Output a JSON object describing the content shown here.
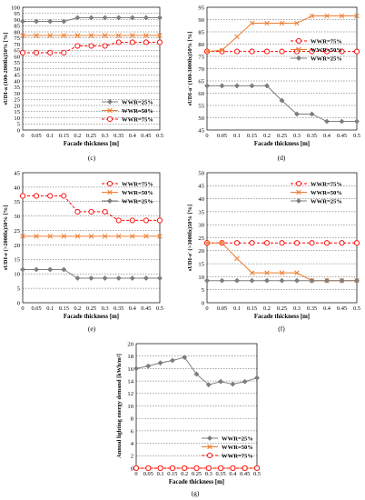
{
  "colors": {
    "wwr25": "#7f7f7f",
    "wwr50": "#ed7d31",
    "wwr75": "#ff0000",
    "axis": "#000000",
    "grid": "#000000"
  },
  "chart_data": [
    {
      "type": "line",
      "panel_label": "(c)",
      "xlabel": "Facade thickness [m]",
      "ylabel": "sUDI-a (100-2000lx)50% [%]",
      "x": [
        "0",
        "0.05",
        "0.1",
        "0.15",
        "0.2",
        "0.25",
        "0.3",
        "0.35",
        "0.4",
        "0.45",
        "0.5"
      ],
      "ylim": [
        0,
        100
      ],
      "yticks": [
        "0",
        "5",
        "10",
        "15",
        "20",
        "25",
        "30",
        "35",
        "40",
        "45",
        "50",
        "55",
        "60",
        "65",
        "70",
        "75",
        "80",
        "85",
        "90",
        "95",
        "100"
      ],
      "legend_position": "bottom-right",
      "series": [
        {
          "name": "WWR=25%",
          "values": [
            88.5,
            88.5,
            88.5,
            88.5,
            91.5,
            91.5,
            91.5,
            91.5,
            91.5,
            91.5,
            91.5
          ]
        },
        {
          "name": "WWR=50%",
          "values": [
            77,
            77,
            77,
            77,
            77,
            77,
            77,
            77,
            77,
            77,
            77
          ]
        },
        {
          "name": "WWR=75%",
          "values": [
            63,
            63,
            63,
            63,
            68.5,
            68.5,
            68.5,
            71.5,
            71.5,
            71.5,
            71.5
          ]
        }
      ]
    },
    {
      "type": "line",
      "panel_label": "(d)",
      "xlabel": "Facade thickness [m]",
      "ylabel": "sUDI-a' (100-3000lx)50% [%]",
      "x": [
        "0",
        "0.05",
        "0.1",
        "0.15",
        "0.2",
        "0.25",
        "0.3",
        "0.35",
        "0.4",
        "0.45",
        "0.5"
      ],
      "ylim": [
        45,
        95
      ],
      "yticks": [
        "45",
        "50",
        "55",
        "60",
        "65",
        "70",
        "75",
        "80",
        "85",
        "90",
        "95"
      ],
      "legend_position": "middle-right",
      "series": [
        {
          "name": "WWR=75%",
          "values": [
            77,
            77,
            77,
            77,
            77,
            77,
            77,
            77,
            77,
            77,
            77
          ]
        },
        {
          "name": "WWR=50%",
          "values": [
            77,
            77.5,
            83,
            88.5,
            88.5,
            88.5,
            88.5,
            91.5,
            91.5,
            91.5,
            91.5
          ]
        },
        {
          "name": "WWR=25%",
          "values": [
            63,
            63,
            63,
            63,
            63,
            57,
            51.5,
            51.5,
            48.5,
            48.5,
            48.5
          ]
        }
      ]
    },
    {
      "type": "line",
      "panel_label": "(e)",
      "xlabel": "Facade thickness [m]",
      "ylabel": "sUDI-e (>2000lx)50% [%]",
      "x": [
        "0",
        "0.05",
        "0.1",
        "0.15",
        "0.2",
        "0.25",
        "0.3",
        "0.35",
        "0.4",
        "0.45",
        "0.5"
      ],
      "ylim": [
        0,
        45
      ],
      "yticks": [
        "0",
        "5",
        "10",
        "15",
        "20",
        "25",
        "30",
        "35",
        "40",
        "45"
      ],
      "legend_position": "top-right",
      "series": [
        {
          "name": "WWR=75%",
          "values": [
            37,
            37,
            37,
            37,
            31.5,
            31.5,
            31.5,
            28.5,
            28.5,
            28.5,
            28.5
          ]
        },
        {
          "name": "WWR=50%",
          "values": [
            23,
            23,
            23,
            23,
            23,
            23,
            23,
            23,
            23,
            23,
            23
          ]
        },
        {
          "name": "WWR=25%",
          "values": [
            11.5,
            11.5,
            11.5,
            11.5,
            8.5,
            8.5,
            8.5,
            8.5,
            8.5,
            8.5,
            8.5
          ]
        }
      ]
    },
    {
      "type": "line",
      "panel_label": "(f)",
      "xlabel": "Facade thickness [m]",
      "ylabel": "sUDI-e' (>3000lx)50% [%]",
      "x": [
        "0",
        "0.05",
        "0.1",
        "0.15",
        "0.2",
        "0.25",
        "0.3",
        "0.35",
        "0.4",
        "0.45",
        "0.5"
      ],
      "ylim": [
        0,
        50
      ],
      "yticks": [
        "0",
        "5",
        "10",
        "15",
        "20",
        "25",
        "30",
        "35",
        "40",
        "45",
        "50"
      ],
      "legend_position": "top-right",
      "series": [
        {
          "name": "WWR=75%",
          "values": [
            23,
            23,
            23,
            23,
            23,
            23,
            23,
            23,
            23,
            23,
            23
          ]
        },
        {
          "name": "WWR=50%",
          "values": [
            23,
            23,
            17,
            11.5,
            11.5,
            11.5,
            11.5,
            8.5,
            8.5,
            8.5,
            8.5
          ]
        },
        {
          "name": "WWR=25%",
          "values": [
            8.5,
            8.5,
            8.5,
            8.5,
            8.5,
            8.5,
            8.5,
            8.5,
            8.5,
            8.5,
            8.5
          ]
        }
      ]
    },
    {
      "type": "line",
      "panel_label": "(g)",
      "xlabel": "Facade thickness [m]",
      "ylabel": "Annual lighting energy demand [kWh/m²]",
      "x": [
        "0",
        "0.05",
        "0.1",
        "0.15",
        "0.2",
        "0.25",
        "0.3",
        "0.35",
        "0.4",
        "0.45",
        "0.5"
      ],
      "ylim": [
        0,
        20
      ],
      "yticks": [
        "0",
        "2",
        "4",
        "6",
        "8",
        "10",
        "12",
        "14",
        "16",
        "18",
        "20"
      ],
      "legend_position": "bottom-right",
      "series": [
        {
          "name": "WWR=25%",
          "values": [
            16,
            16.4,
            16.9,
            17.3,
            17.8,
            15.1,
            13.4,
            13.9,
            13.5,
            13.9,
            14.5
          ]
        },
        {
          "name": "WWR=50%",
          "values": [
            0,
            0,
            0,
            0,
            0,
            0,
            0,
            0,
            0,
            0,
            0
          ]
        },
        {
          "name": "WWR=75%",
          "values": [
            0,
            0,
            0,
            0,
            0,
            0,
            0,
            0,
            0,
            0,
            0
          ]
        }
      ]
    }
  ]
}
